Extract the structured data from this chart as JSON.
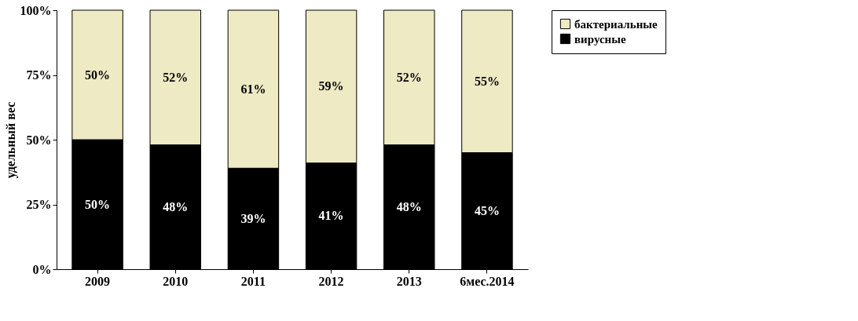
{
  "chart_data": {
    "type": "bar",
    "stacked": true,
    "ylabel": "удельный вес",
    "categories": [
      "2009",
      "2010",
      "2011",
      "2012",
      "2013",
      "6мес.2014"
    ],
    "series": [
      {
        "name": "вирусные",
        "color": "#000000",
        "values": [
          50,
          48,
          39,
          41,
          48,
          45
        ],
        "value_labels": [
          "50%",
          "48%",
          "39%",
          "41%",
          "48%",
          "45%"
        ]
      },
      {
        "name": "бактериальные",
        "color": "#eeeac4",
        "values": [
          50,
          52,
          61,
          59,
          52,
          55
        ],
        "value_labels": [
          "50%",
          "52%",
          "61%",
          "59%",
          "52%",
          "55%"
        ]
      }
    ],
    "ylim": [
      0,
      100
    ],
    "yticks": [
      {
        "value": 0,
        "label": "0%"
      },
      {
        "value": 25,
        "label": "25%"
      },
      {
        "value": 50,
        "label": "50%"
      },
      {
        "value": 75,
        "label": "75%"
      },
      {
        "value": 100,
        "label": "100%"
      }
    ],
    "grid": false,
    "legend": "right"
  }
}
